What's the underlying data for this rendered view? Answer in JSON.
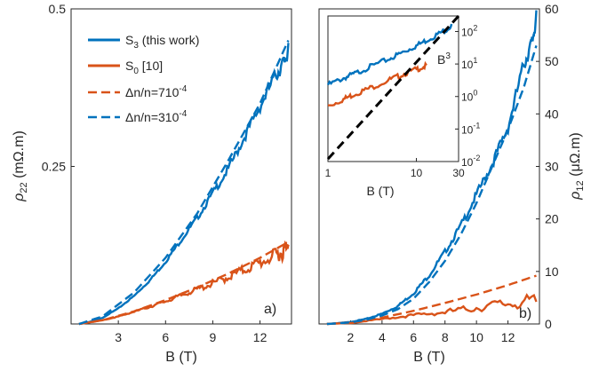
{
  "chart_data": [
    {
      "type": "line",
      "panel_label": "a)",
      "xlabel": "B (T)",
      "ylabel_main": "ρ",
      "ylabel_sub": "22",
      "ylabel_units": " (mΩ.m)",
      "xlim": [
        0,
        14
      ],
      "ylim": [
        0,
        0.5
      ],
      "xticks": [
        3,
        6,
        9,
        12
      ],
      "yticks": [
        0.25,
        0.5
      ],
      "ytick_labels": [
        "0.25",
        "0.5"
      ],
      "legend_position": "top-left",
      "series": [
        {
          "name": "S3 (this work)",
          "style": "solid",
          "color": "#0072BD",
          "x": [
            0.5,
            1,
            2,
            3,
            4,
            5,
            6,
            7,
            8,
            9,
            10,
            11,
            12,
            13,
            13.5,
            13.8
          ],
          "values": [
            0,
            0.002,
            0.01,
            0.025,
            0.045,
            0.07,
            0.1,
            0.135,
            0.17,
            0.21,
            0.25,
            0.3,
            0.35,
            0.4,
            0.42,
            0.44
          ]
        },
        {
          "name": "S0 [10]",
          "style": "solid",
          "color": "#D95319",
          "x": [
            0.5,
            1,
            2,
            3,
            4,
            5,
            6,
            7,
            8,
            9,
            10,
            11,
            12,
            13,
            13.5,
            13.8
          ],
          "values": [
            0,
            0.002,
            0.006,
            0.012,
            0.02,
            0.028,
            0.037,
            0.047,
            0.057,
            0.067,
            0.078,
            0.09,
            0.102,
            0.115,
            0.12,
            0.14
          ]
        },
        {
          "name": "Δn/n=7 10^-4",
          "style": "dashed",
          "color": "#D95319",
          "x": [
            0.5,
            2,
            4,
            6,
            8,
            10,
            12,
            13.8
          ],
          "values": [
            0,
            0.006,
            0.02,
            0.038,
            0.058,
            0.08,
            0.105,
            0.13
          ]
        },
        {
          "name": "Δn/n=3 10^-4",
          "style": "dashed",
          "color": "#0072BD",
          "x": [
            0.5,
            2,
            4,
            6,
            8,
            10,
            12,
            13.8
          ],
          "values": [
            0,
            0.012,
            0.05,
            0.105,
            0.175,
            0.26,
            0.35,
            0.45
          ]
        }
      ]
    },
    {
      "type": "line",
      "panel_label": "b)",
      "xlabel": "B (T)",
      "ylabel_main": "ρ",
      "ylabel_sub": "12",
      "ylabel_units": " (μΩ.m)",
      "xlim": [
        0,
        14
      ],
      "ylim": [
        0,
        60
      ],
      "xticks": [
        2,
        4,
        6,
        8,
        10,
        12
      ],
      "yticks": [
        0,
        10,
        20,
        30,
        40,
        50,
        60
      ],
      "series": [
        {
          "name": "S3 (this work)",
          "style": "solid",
          "color": "#0072BD",
          "x": [
            0.5,
            1,
            2,
            3,
            4,
            5,
            6,
            7,
            8,
            9,
            10,
            11,
            12,
            13,
            13.5,
            13.8
          ],
          "values": [
            0,
            0.1,
            0.4,
            1,
            2,
            3.5,
            6,
            9.5,
            14,
            19,
            25,
            31,
            38,
            50,
            54,
            59
          ]
        },
        {
          "name": "S0 [10]",
          "style": "solid",
          "color": "#D95319",
          "x": [
            0.5,
            2,
            4,
            6,
            8,
            10,
            12,
            13.8
          ],
          "values": [
            0,
            0.2,
            1,
            1.8,
            2.5,
            3.5,
            4.5,
            5
          ]
        },
        {
          "name": "Δn/n=7 10^-4",
          "style": "dashed",
          "color": "#D95319",
          "x": [
            0.5,
            2,
            4,
            6,
            8,
            10,
            12,
            13.8
          ],
          "values": [
            0,
            0.3,
            1.2,
            2.5,
            4,
            5.6,
            7.4,
            9.2
          ]
        },
        {
          "name": "Δn/n=3 10^-4",
          "style": "dashed",
          "color": "#0072BD",
          "x": [
            0.5,
            1,
            2,
            3,
            4,
            5,
            6,
            7,
            8,
            9,
            10,
            11,
            12,
            13,
            13.8
          ],
          "values": [
            0,
            0.08,
            0.3,
            0.8,
            1.6,
            2.8,
            4.8,
            8,
            12,
            17,
            23,
            30,
            37,
            45,
            53
          ]
        }
      ]
    },
    {
      "type": "line",
      "scale": "log-log",
      "xlabel": "B (T)",
      "xlim": [
        1,
        30
      ],
      "ylim": [
        0.01,
        300
      ],
      "xtick_labels": [
        "1",
        "10",
        "30"
      ],
      "xticks": [
        1,
        10,
        30
      ],
      "ytick_bases": [
        "10",
        "10",
        "10",
        "10",
        "10"
      ],
      "ytick_exps": [
        "-2",
        "-1",
        "0",
        "1",
        "2"
      ],
      "yticks": [
        0.01,
        0.1,
        1,
        10,
        100
      ],
      "annotation_base": "B",
      "annotation_exp": "3",
      "series": [
        {
          "name": "S3 (this work)",
          "color": "#0072BD",
          "style": "solid",
          "x": [
            1,
            1.5,
            2,
            3,
            5,
            7,
            10,
            14,
            20,
            25
          ],
          "values": [
            2.5,
            4,
            5.5,
            9,
            16,
            25,
            40,
            65,
            110,
            160
          ]
        },
        {
          "name": "S0 [10]",
          "color": "#D95319",
          "style": "solid",
          "x": [
            1,
            1.5,
            2,
            3,
            5,
            7,
            10,
            13
          ],
          "values": [
            0.55,
            0.9,
            1.3,
            2,
            3.6,
            5.2,
            7.5,
            9.5
          ]
        },
        {
          "name": "B^3",
          "color": "#000000",
          "style": "dashed",
          "x": [
            1,
            30
          ],
          "values": [
            0.012,
            324
          ]
        }
      ]
    }
  ],
  "legend": [
    {
      "main": "S",
      "sub": "3",
      "rest": " (this work)"
    },
    {
      "main": "S",
      "sub": "0",
      "rest": " [10]"
    },
    {
      "main": "Δn/n=7",
      "sup_prefix": "10",
      "sup": "-4"
    },
    {
      "main": "Δn/n=3",
      "sup_prefix": "10",
      "sup": "-4"
    }
  ],
  "colors": {
    "blue": "#0072BD",
    "orange": "#D95319",
    "black": "#000000"
  }
}
